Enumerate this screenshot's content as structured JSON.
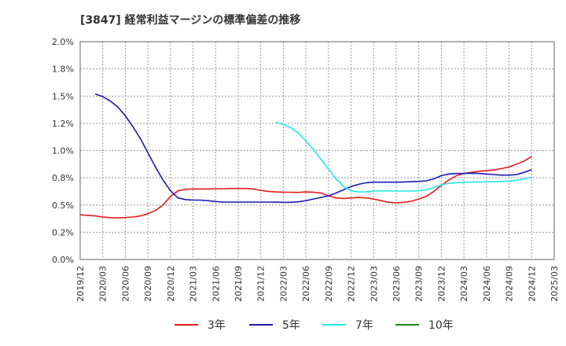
{
  "chart_data": {
    "type": "line",
    "title": "[3847]  経常利益マージンの標準偏差の推移",
    "xlabel": "",
    "ylabel": "",
    "ylim": [
      0,
      2.0
    ],
    "yticks": [
      "0.0%",
      "0.2%",
      "0.5%",
      "0.8%",
      "1.0%",
      "1.2%",
      "1.5%",
      "1.8%",
      "2.0%"
    ],
    "xlim": [
      "2019/12",
      "2025/03"
    ],
    "xticks": [
      "2019/12",
      "2020/03",
      "2020/06",
      "2020/09",
      "2020/12",
      "2021/03",
      "2021/06",
      "2021/09",
      "2021/12",
      "2022/03",
      "2022/06",
      "2022/09",
      "2022/12",
      "2023/03",
      "2023/06",
      "2023/09",
      "2023/12",
      "2024/03",
      "2024/06",
      "2024/09",
      "2024/12",
      "2025/03"
    ],
    "grid": true,
    "legend_position": "bottom",
    "series": [
      {
        "name": "3年",
        "color": "#e41a1c",
        "points": [
          [
            "2019/12",
            0.41
          ],
          [
            "2020/01",
            0.405
          ],
          [
            "2020/02",
            0.4
          ],
          [
            "2020/03",
            0.39
          ],
          [
            "2020/04",
            0.385
          ],
          [
            "2020/05",
            0.382
          ],
          [
            "2020/06",
            0.385
          ],
          [
            "2020/07",
            0.39
          ],
          [
            "2020/08",
            0.4
          ],
          [
            "2020/09",
            0.42
          ],
          [
            "2020/10",
            0.45
          ],
          [
            "2020/11",
            0.5
          ],
          [
            "2020/12",
            0.58
          ],
          [
            "2021/01",
            0.63
          ],
          [
            "2021/02",
            0.645
          ],
          [
            "2021/03",
            0.648
          ],
          [
            "2021/04",
            0.648
          ],
          [
            "2021/05",
            0.648
          ],
          [
            "2021/06",
            0.65
          ],
          [
            "2021/07",
            0.65
          ],
          [
            "2021/08",
            0.652
          ],
          [
            "2021/09",
            0.652
          ],
          [
            "2021/10",
            0.652
          ],
          [
            "2021/11",
            0.648
          ],
          [
            "2021/12",
            0.635
          ],
          [
            "2022/01",
            0.625
          ],
          [
            "2022/02",
            0.62
          ],
          [
            "2022/03",
            0.618
          ],
          [
            "2022/04",
            0.617
          ],
          [
            "2022/05",
            0.616
          ],
          [
            "2022/06",
            0.62
          ],
          [
            "2022/07",
            0.618
          ],
          [
            "2022/08",
            0.61
          ],
          [
            "2022/09",
            0.585
          ],
          [
            "2022/10",
            0.565
          ],
          [
            "2022/11",
            0.56
          ],
          [
            "2022/12",
            0.565
          ],
          [
            "2023/01",
            0.57
          ],
          [
            "2023/02",
            0.565
          ],
          [
            "2023/03",
            0.555
          ],
          [
            "2023/04",
            0.54
          ],
          [
            "2023/05",
            0.525
          ],
          [
            "2023/06",
            0.52
          ],
          [
            "2023/07",
            0.525
          ],
          [
            "2023/08",
            0.535
          ],
          [
            "2023/09",
            0.555
          ],
          [
            "2023/10",
            0.58
          ],
          [
            "2023/11",
            0.625
          ],
          [
            "2023/12",
            0.68
          ],
          [
            "2024/01",
            0.73
          ],
          [
            "2024/02",
            0.77
          ],
          [
            "2024/03",
            0.79
          ],
          [
            "2024/04",
            0.8
          ],
          [
            "2024/05",
            0.81
          ],
          [
            "2024/06",
            0.815
          ],
          [
            "2024/07",
            0.822
          ],
          [
            "2024/08",
            0.835
          ],
          [
            "2024/09",
            0.85
          ],
          [
            "2024/10",
            0.875
          ],
          [
            "2024/11",
            0.905
          ],
          [
            "2024/12",
            0.945
          ]
        ]
      },
      {
        "name": "5年",
        "color": "#1a1ab4",
        "points": [
          [
            "2020/02",
            1.52
          ],
          [
            "2020/03",
            1.495
          ],
          [
            "2020/04",
            1.455
          ],
          [
            "2020/05",
            1.4
          ],
          [
            "2020/06",
            1.32
          ],
          [
            "2020/07",
            1.22
          ],
          [
            "2020/08",
            1.11
          ],
          [
            "2020/09",
            0.98
          ],
          [
            "2020/10",
            0.85
          ],
          [
            "2020/11",
            0.73
          ],
          [
            "2020/12",
            0.63
          ],
          [
            "2021/01",
            0.565
          ],
          [
            "2021/02",
            0.55
          ],
          [
            "2021/03",
            0.545
          ],
          [
            "2021/04",
            0.545
          ],
          [
            "2021/05",
            0.54
          ],
          [
            "2021/06",
            0.532
          ],
          [
            "2021/07",
            0.528
          ],
          [
            "2021/08",
            0.527
          ],
          [
            "2021/09",
            0.527
          ],
          [
            "2021/10",
            0.527
          ],
          [
            "2021/11",
            0.527
          ],
          [
            "2021/12",
            0.527
          ],
          [
            "2022/01",
            0.527
          ],
          [
            "2022/02",
            0.526
          ],
          [
            "2022/03",
            0.525
          ],
          [
            "2022/04",
            0.525
          ],
          [
            "2022/05",
            0.53
          ],
          [
            "2022/06",
            0.54
          ],
          [
            "2022/07",
            0.555
          ],
          [
            "2022/08",
            0.57
          ],
          [
            "2022/09",
            0.585
          ],
          [
            "2022/10",
            0.61
          ],
          [
            "2022/11",
            0.64
          ],
          [
            "2022/12",
            0.67
          ],
          [
            "2023/01",
            0.69
          ],
          [
            "2023/02",
            0.705
          ],
          [
            "2023/03",
            0.71
          ],
          [
            "2023/04",
            0.71
          ],
          [
            "2023/05",
            0.71
          ],
          [
            "2023/06",
            0.71
          ],
          [
            "2023/07",
            0.712
          ],
          [
            "2023/08",
            0.714
          ],
          [
            "2023/09",
            0.717
          ],
          [
            "2023/10",
            0.722
          ],
          [
            "2023/11",
            0.74
          ],
          [
            "2023/12",
            0.77
          ],
          [
            "2024/01",
            0.785
          ],
          [
            "2024/02",
            0.79
          ],
          [
            "2024/03",
            0.79
          ],
          [
            "2024/04",
            0.792
          ],
          [
            "2024/05",
            0.79
          ],
          [
            "2024/06",
            0.785
          ],
          [
            "2024/07",
            0.78
          ],
          [
            "2024/08",
            0.775
          ],
          [
            "2024/09",
            0.775
          ],
          [
            "2024/10",
            0.78
          ],
          [
            "2024/11",
            0.8
          ],
          [
            "2024/12",
            0.825
          ]
        ]
      },
      {
        "name": "7年",
        "color": "#22e8e8",
        "points": [
          [
            "2022/02",
            1.26
          ],
          [
            "2022/03",
            1.24
          ],
          [
            "2022/04",
            1.21
          ],
          [
            "2022/05",
            1.16
          ],
          [
            "2022/06",
            1.09
          ],
          [
            "2022/07",
            1.01
          ],
          [
            "2022/08",
            0.92
          ],
          [
            "2022/09",
            0.83
          ],
          [
            "2022/10",
            0.74
          ],
          [
            "2022/11",
            0.67
          ],
          [
            "2022/12",
            0.63
          ],
          [
            "2023/01",
            0.62
          ],
          [
            "2023/02",
            0.622
          ],
          [
            "2023/03",
            0.628
          ],
          [
            "2023/04",
            0.63
          ],
          [
            "2023/05",
            0.63
          ],
          [
            "2023/06",
            0.628
          ],
          [
            "2023/07",
            0.628
          ],
          [
            "2023/08",
            0.628
          ],
          [
            "2023/09",
            0.63
          ],
          [
            "2023/10",
            0.64
          ],
          [
            "2023/11",
            0.66
          ],
          [
            "2023/12",
            0.685
          ],
          [
            "2024/01",
            0.7
          ],
          [
            "2024/02",
            0.705
          ],
          [
            "2024/03",
            0.708
          ],
          [
            "2024/04",
            0.71
          ],
          [
            "2024/05",
            0.712
          ],
          [
            "2024/06",
            0.713
          ],
          [
            "2024/07",
            0.714
          ],
          [
            "2024/08",
            0.716
          ],
          [
            "2024/09",
            0.72
          ],
          [
            "2024/10",
            0.728
          ],
          [
            "2024/11",
            0.74
          ],
          [
            "2024/12",
            0.755
          ]
        ]
      },
      {
        "name": "10年",
        "color": "#1a8a1a",
        "points": []
      }
    ]
  }
}
